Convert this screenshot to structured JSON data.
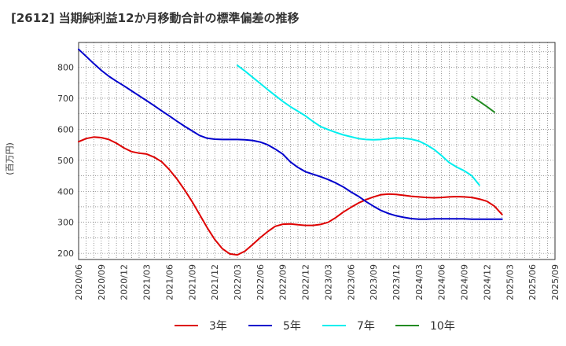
{
  "chart_data": {
    "type": "line",
    "title": "[2612]  当期純利益12か月移動合計の標準偏差の推移",
    "ylabel": "(百万円)",
    "xlabel": "",
    "ylim": [
      180,
      880
    ],
    "yticks": [
      200,
      300,
      400,
      500,
      600,
      700,
      800
    ],
    "xticks": [
      "2020/06",
      "2020/09",
      "2020/12",
      "2021/03",
      "2021/06",
      "2021/09",
      "2021/12",
      "2022/03",
      "2022/06",
      "2022/09",
      "2022/12",
      "2023/03",
      "2023/06",
      "2023/09",
      "2023/12",
      "2024/03",
      "2024/06",
      "2024/09",
      "2024/12",
      "2025/03",
      "2025/06",
      "2025/09"
    ],
    "grid": true,
    "legend_position": "bottom",
    "series": [
      {
        "name": "3年",
        "color": "#dd0000",
        "start": 0,
        "values": [
          560,
          570,
          575,
          573,
          567,
          555,
          540,
          528,
          523,
          520,
          510,
          495,
          470,
          440,
          405,
          367,
          325,
          283,
          245,
          215,
          198,
          195,
          207,
          228,
          250,
          270,
          287,
          294,
          295,
          292,
          290,
          290,
          293,
          300,
          315,
          333,
          348,
          362,
          373,
          382,
          389,
          391,
          390,
          387,
          384,
          382,
          380,
          379,
          380,
          382,
          383,
          382,
          380,
          375,
          368,
          352,
          325
        ]
      },
      {
        "name": "5年",
        "color": "#0000cc",
        "start": 0,
        "values": [
          858,
          835,
          812,
          790,
          771,
          755,
          740,
          724,
          708,
          692,
          676,
          659,
          643,
          626,
          610,
          595,
          580,
          571,
          568,
          567,
          567,
          567,
          566,
          564,
          559,
          550,
          536,
          520,
          495,
          477,
          463,
          455,
          447,
          438,
          427,
          414,
          398,
          384,
          367,
          352,
          338,
          328,
          321,
          316,
          312,
          310,
          310,
          311,
          311,
          311,
          311,
          311,
          310,
          310,
          310,
          310,
          310
        ]
      },
      {
        "name": "7年",
        "color": "#00eeee",
        "start": 21,
        "values": [
          806,
          788,
          768,
          748,
          728,
          709,
          690,
          673,
          658,
          643,
          625,
          609,
          599,
          590,
          582,
          576,
          570,
          567,
          566,
          567,
          570,
          572,
          571,
          568,
          562,
          550,
          535,
          515,
          493,
          478,
          466,
          450,
          420
        ]
      },
      {
        "name": "10年",
        "color": "#228b22",
        "start": 52,
        "values": [
          706,
          690,
          673,
          655
        ]
      }
    ]
  }
}
